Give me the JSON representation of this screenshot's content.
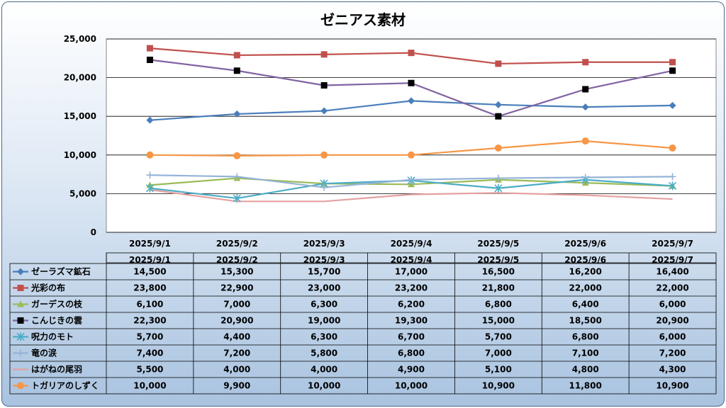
{
  "chart_data": {
    "type": "line",
    "title": "ゼニアス素材",
    "xlabel": "",
    "ylabel": "",
    "ylim": [
      0,
      25000
    ],
    "y_ticks": [
      "0",
      "5,000",
      "10,000",
      "15,000",
      "20,000",
      "25,000"
    ],
    "grid": true,
    "legend": "data-table",
    "categories": [
      "2025/9/1",
      "2025/9/2",
      "2025/9/3",
      "2025/9/4",
      "2025/9/5",
      "2025/9/6",
      "2025/9/7"
    ],
    "series": [
      {
        "name": "ゼーラズマ鉱石",
        "color": "#4a7ebb",
        "marker": "diamond",
        "values": [
          14500,
          15300,
          15700,
          17000,
          16500,
          16200,
          16400
        ],
        "labels": [
          "14,500",
          "15,300",
          "15,700",
          "17,000",
          "16,500",
          "16,200",
          "16,400"
        ]
      },
      {
        "name": "光彩の布",
        "color": "#c0504d",
        "marker": "square",
        "values": [
          23800,
          22900,
          23000,
          23200,
          21800,
          22000,
          22000
        ],
        "labels": [
          "23,800",
          "22,900",
          "23,000",
          "23,200",
          "21,800",
          "22,000",
          "22,000"
        ]
      },
      {
        "name": "ガーデスの枝",
        "color": "#9bbb59",
        "marker": "triangle",
        "values": [
          6100,
          7000,
          6300,
          6200,
          6800,
          6400,
          6000
        ],
        "labels": [
          "6,100",
          "7,000",
          "6,300",
          "6,200",
          "6,800",
          "6,400",
          "6,000"
        ]
      },
      {
        "name": "こんじきの雲",
        "color": "#8064a2",
        "marker": "square-black",
        "values": [
          22300,
          20900,
          19000,
          19300,
          15000,
          18500,
          20900
        ],
        "labels": [
          "22,300",
          "20,900",
          "19,000",
          "19,300",
          "15,000",
          "18,500",
          "20,900"
        ]
      },
      {
        "name": "呪力のモト",
        "color": "#4bacc6",
        "marker": "star",
        "values": [
          5700,
          4400,
          6300,
          6700,
          5700,
          6800,
          6000
        ],
        "labels": [
          "5,700",
          "4,400",
          "6,300",
          "6,700",
          "5,700",
          "6,800",
          "6,000"
        ]
      },
      {
        "name": "竜の涙",
        "color": "#95b3d7",
        "marker": "plus",
        "values": [
          7400,
          7200,
          5800,
          6800,
          7000,
          7100,
          7200
        ],
        "labels": [
          "7,400",
          "7,200",
          "5,800",
          "6,800",
          "7,000",
          "7,100",
          "7,200"
        ]
      },
      {
        "name": "はがねの尾羽",
        "color": "#e6a0a0",
        "marker": "none",
        "values": [
          5500,
          4000,
          4000,
          4900,
          5100,
          4800,
          4300
        ],
        "labels": [
          "5,500",
          "4,000",
          "4,000",
          "4,900",
          "5,100",
          "4,800",
          "4,300"
        ]
      },
      {
        "name": "トガリアのしずく",
        "color": "#f79646",
        "marker": "circle",
        "values": [
          10000,
          9900,
          10000,
          10000,
          10900,
          11800,
          10900
        ],
        "labels": [
          "10,000",
          "9,900",
          "10,000",
          "10,000",
          "10,900",
          "11,800",
          "10,900"
        ]
      }
    ]
  }
}
